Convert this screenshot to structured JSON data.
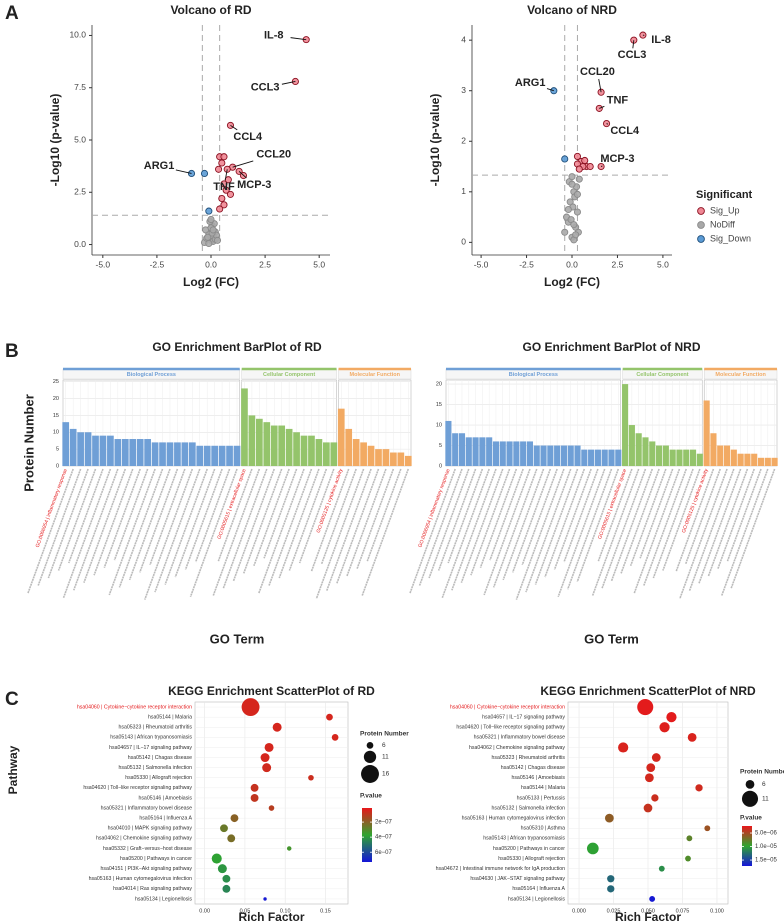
{
  "chart_data": [
    {
      "type": "scatter",
      "panel": "A",
      "title": "Volcano of RD",
      "xlabel": "Log2 (FC)",
      "ylabel": "-Log10 (p-value)",
      "xlim": [
        -5.5,
        5.5
      ],
      "ylim": [
        -0.5,
        10.5
      ],
      "xticks": [
        {
          "value": -5,
          "label": "-5.0"
        },
        -2.5,
        {
          "value": 0,
          "label": "0.0"
        },
        2.5,
        {
          "value": 5,
          "label": "5.0"
        }
      ],
      "yticks": [
        {
          "value": 0,
          "label": "0.0"
        },
        2.5,
        {
          "value": 5,
          "label": "5.0"
        },
        7.5,
        {
          "value": 10,
          "label": "10.0"
        }
      ],
      "hlines": [
        1.4
      ],
      "vlines": [
        -0.4,
        0.4
      ],
      "series": [
        {
          "color": "#ef8794",
          "edgecolor": "#8b1020",
          "x": [
            4.4,
            3.9,
            0.9,
            1.0,
            0.75,
            1.3,
            0.4,
            0.6,
            0.5,
            0.35,
            0.8,
            0.6,
            0.7,
            0.9,
            0.5,
            0.6,
            0.4,
            1.5
          ],
          "values": [
            9.8,
            7.8,
            5.7,
            3.7,
            3.6,
            3.5,
            4.2,
            4.2,
            3.9,
            3.6,
            3.1,
            2.9,
            2.6,
            2.4,
            2.2,
            1.9,
            1.7,
            3.3
          ]
        },
        {
          "color": "#a8a8a8",
          "edgecolor": "#8a8a8a",
          "x": [
            -0.3,
            -0.2,
            -0.1,
            0,
            0.1,
            0.2,
            -0.25,
            0.05,
            0.15,
            -0.05,
            0.1,
            0.2,
            0,
            -0.15,
            0.25,
            0.05,
            -0.1,
            0.3,
            0.1,
            0
          ],
          "values": [
            0.1,
            0.3,
            0.5,
            0.2,
            0.4,
            0.6,
            0.7,
            0.9,
            1.0,
            1.1,
            0.15,
            0.25,
            0.8,
            0.35,
            0.45,
            0.55,
            0.05,
            0.2,
            0.7,
            1.2
          ]
        },
        {
          "color": "#5b9bd5",
          "edgecolor": "#1f4e79",
          "x": [
            -0.9,
            -0.3,
            -0.1
          ],
          "values": [
            3.4,
            3.4,
            1.6
          ]
        }
      ],
      "annotations": [
        {
          "text": "IL-8",
          "xy": [
            4.4,
            9.8
          ],
          "xytext": [
            2.9,
            10.0
          ]
        },
        {
          "text": "CCL3",
          "xy": [
            3.9,
            7.8
          ],
          "xytext": [
            2.5,
            7.5
          ]
        },
        {
          "text": "CCL4",
          "xy": [
            0.9,
            5.7
          ],
          "xytext": [
            1.7,
            5.15
          ]
        },
        {
          "text": "CCL20",
          "xy": [
            1.0,
            3.7
          ],
          "xytext": [
            2.9,
            4.3
          ]
        },
        {
          "text": "TNF",
          "xy": [
            0.75,
            3.6
          ],
          "xytext": [
            0.6,
            2.75
          ]
        },
        {
          "text": "MCP-3",
          "xy": [
            1.3,
            3.5
          ],
          "xytext": [
            2.0,
            2.85
          ]
        },
        {
          "text": "ARG1",
          "xy": [
            -0.9,
            3.4
          ],
          "xytext": [
            -2.4,
            3.75
          ]
        }
      ]
    },
    {
      "type": "scatter",
      "title": "Volcano of NRD",
      "xlabel": "Log2 (FC)",
      "ylabel": "-Log10 (p-value)",
      "xlim": [
        -5.5,
        5.5
      ],
      "ylim": [
        -0.25,
        4.3
      ],
      "xticks": [
        {
          "value": -5,
          "label": "-5.0"
        },
        -2.5,
        {
          "value": 0,
          "label": "0.0"
        },
        2.5,
        {
          "value": 5,
          "label": "5.0"
        }
      ],
      "yticks": [
        0,
        1,
        2,
        3,
        4
      ],
      "hlines": [
        1.33
      ],
      "vlines": [
        -0.4,
        0.3
      ],
      "legend": "right",
      "legend_title": "Significant",
      "series": [
        {
          "name": "Sig_Up",
          "color": "#ef8794",
          "edgecolor": "#8b1020",
          "x": [
            3.9,
            3.4,
            1.6,
            1.5,
            1.9,
            1.6,
            0.3,
            0.5,
            0.7,
            0.8,
            1.0,
            0.6,
            0.3,
            0.4
          ],
          "values": [
            4.1,
            4.0,
            2.97,
            2.65,
            2.35,
            1.5,
            1.7,
            1.6,
            1.62,
            1.5,
            1.5,
            1.5,
            1.55,
            1.45
          ]
        },
        {
          "name": "NoDiff",
          "color": "#a8a8a8",
          "edgecolor": "#8a8a8a",
          "x": [
            -0.4,
            -0.2,
            0,
            0.2,
            0.3,
            -0.1,
            0.1,
            0.25,
            -0.3,
            0.05,
            0.15,
            -0.15,
            0.35,
            0,
            0.1,
            -0.05,
            0.2,
            0.3,
            -0.2,
            0.1,
            0.4,
            0
          ],
          "values": [
            0.2,
            0.4,
            0.1,
            0.3,
            0.6,
            0.8,
            1.0,
            1.1,
            0.5,
            0.7,
            0.9,
            1.2,
            0.2,
            1.3,
            0.05,
            0.45,
            0.15,
            0.95,
            0.65,
            0.35,
            1.25,
            1.15
          ]
        },
        {
          "name": "Sig_Down",
          "color": "#5b9bd5",
          "edgecolor": "#1f4e79",
          "x": [
            -1.0,
            -0.4
          ],
          "values": [
            3.0,
            1.65
          ]
        }
      ],
      "annotations": [
        {
          "text": "IL-8",
          "xy": [
            3.9,
            4.1
          ],
          "xytext": [
            4.9,
            4.0
          ]
        },
        {
          "text": "CCL3",
          "xy": [
            3.4,
            4.0
          ],
          "xytext": [
            3.3,
            3.7
          ]
        },
        {
          "text": "CCL20",
          "xy": [
            1.6,
            2.97
          ],
          "xytext": [
            1.4,
            3.37
          ]
        },
        {
          "text": "TNF",
          "xy": [
            1.5,
            2.65
          ],
          "xytext": [
            2.5,
            2.8
          ]
        },
        {
          "text": "CCL4",
          "xy": [
            1.9,
            2.35
          ],
          "xytext": [
            2.9,
            2.2
          ]
        },
        {
          "text": "MCP-3",
          "xy": [
            1.6,
            1.5
          ],
          "xytext": [
            2.5,
            1.65
          ]
        },
        {
          "text": "ARG1",
          "xy": [
            -1.0,
            3.0
          ],
          "xytext": [
            -2.3,
            3.15
          ]
        }
      ]
    },
    {
      "type": "bar",
      "panel": "B",
      "title": "GO Enrichment BarPlot of RD",
      "ylabel": "Protein Number",
      "xlabel": "GO Term",
      "ylim": [
        0,
        25.5
      ],
      "yticks": [
        0,
        5,
        10,
        15,
        20,
        25
      ],
      "grid": true,
      "highlight_color": "#e41a1c",
      "groups": [
        {
          "name": "Biological Process",
          "color": "#6f9fd6",
          "categories": [
            "GO:0006954 | inflammatory response",
            null,
            null,
            null,
            null,
            null,
            null,
            null,
            null,
            null,
            null,
            null,
            null,
            null,
            null,
            null,
            null,
            null,
            null,
            null,
            null,
            null,
            null,
            null
          ],
          "values": [
            13,
            11,
            10,
            10,
            9,
            9,
            9,
            8,
            8,
            8,
            8,
            8,
            7,
            7,
            7,
            7,
            7,
            7,
            6,
            6,
            6,
            6,
            6,
            6
          ]
        },
        {
          "name": "Cellular Component",
          "color": "#94c46b",
          "categories": [
            "GO:0005615 | extracellular space",
            null,
            null,
            null,
            null,
            null,
            null,
            null,
            null,
            null,
            null,
            null,
            null
          ],
          "values": [
            23,
            15,
            14,
            13,
            12,
            12,
            11,
            10,
            9,
            9,
            8,
            7,
            7
          ]
        },
        {
          "name": "Molecular Function",
          "color": "#f2aa63",
          "categories": [
            "GO:0005125 | cytokine activity",
            null,
            null,
            null,
            null,
            null,
            null,
            null,
            null,
            null
          ],
          "values": [
            17,
            11,
            8,
            7,
            6,
            5,
            5,
            4,
            4,
            3
          ]
        }
      ]
    },
    {
      "type": "bar",
      "title": "GO Enrichment BarPlot of NRD",
      "xlabel": "GO Term",
      "ylim": [
        0,
        21
      ],
      "yticks": [
        0,
        5,
        10,
        15,
        20
      ],
      "grid": true,
      "highlight_color": "#e41a1c",
      "groups": [
        {
          "name": "Biological Process",
          "color": "#6f9fd6",
          "categories": [
            "GO:0006954 | inflammatory response",
            null,
            null,
            null,
            null,
            null,
            null,
            null,
            null,
            null,
            null,
            null,
            null,
            null,
            null,
            null,
            null,
            null,
            null,
            null,
            null,
            null,
            null,
            null,
            null,
            null
          ],
          "values": [
            11,
            8,
            8,
            7,
            7,
            7,
            7,
            6,
            6,
            6,
            6,
            6,
            6,
            5,
            5,
            5,
            5,
            5,
            5,
            5,
            4,
            4,
            4,
            4,
            4,
            4
          ]
        },
        {
          "name": "Cellular Component",
          "color": "#94c46b",
          "categories": [
            "GO:0005615 | extracellular space",
            null,
            null,
            null,
            null,
            null,
            null,
            null,
            null,
            null,
            null,
            null
          ],
          "values": [
            20,
            10,
            8,
            7,
            6,
            5,
            5,
            4,
            4,
            4,
            4,
            3
          ]
        },
        {
          "name": "Molecular Function",
          "color": "#f2aa63",
          "categories": [
            "GO:0005125 | cytokine activity",
            null,
            null,
            null,
            null,
            null,
            null,
            null,
            null,
            null,
            null
          ],
          "values": [
            16,
            8,
            5,
            5,
            4,
            3,
            3,
            3,
            2,
            2,
            2
          ]
        }
      ]
    },
    {
      "type": "bubble",
      "panel": "C",
      "title": "KEGG Enrichment ScatterPlot of RD",
      "ylabel": "Pathway",
      "xlabel": "Rich Factor",
      "xlim": [
        -0.012,
        0.178
      ],
      "xticks": [
        {
          "value": 0,
          "label": "0.00"
        },
        0.05,
        {
          "value": 0.1,
          "label": "0.10"
        },
        0.15
      ],
      "highlight": [
        0
      ],
      "highlight_color": "#e41a1c",
      "categories": [
        "hsa04060 | Cytokine−cytokine receptor interaction",
        "hsa05144 | Malaria",
        "hsa05323 | Rheumatoid arthritis",
        "hsa05143 | African trypanosomiasis",
        "hsa04657 | IL−17 signaling pathway",
        "hsa05142 | Chagas disease",
        "hsa05132 | Salmonella infection",
        "hsa05330 | Allograft rejection",
        "hsa04620 | Toll−like receptor signaling pathway",
        "hsa05146 | Amoebiasis",
        "hsa05321 | Inflammatory bowel disease",
        "hsa05164 | Influenza A",
        "hsa04010 | MAPK signaling pathway",
        "hsa04062 | Chemokine signaling pathway",
        "hsa05332 | Graft−versus−host disease",
        "hsa05200 | Pathways in cancer",
        "hsa04151 | PI3K−Akt signaling pathway",
        "hsa05163 | Human cytomegalovirus infection",
        "hsa04014 | Ras signaling pathway",
        "hsa05134 | Legionellosis"
      ],
      "values": [
        0.057,
        0.155,
        0.09,
        0.162,
        0.08,
        0.075,
        0.077,
        0.132,
        0.062,
        0.062,
        0.083,
        0.037,
        0.024,
        0.033,
        0.105,
        0.015,
        0.022,
        0.027,
        0.027,
        0.075
      ],
      "sizes": [
        16,
        6,
        8,
        6,
        8,
        8,
        8,
        5,
        7,
        7,
        5,
        7,
        7,
        7,
        4,
        9,
        8,
        7,
        7,
        3
      ],
      "pvalues": [
        5e-08,
        5e-08,
        5e-08,
        5e-08,
        5e-08,
        5e-08,
        6e-08,
        7e-08,
        8e-08,
        9e-08,
        1.1e-07,
        2e-07,
        2.6e-07,
        2.3e-07,
        3.3e-07,
        3.8e-07,
        4.1e-07,
        4.3e-07,
        4.5e-07,
        7.2e-07
      ],
      "size_legend": {
        "title": "Protein Number",
        "values": [
          6,
          11,
          16
        ]
      },
      "color_legend": {
        "title": "P.value",
        "lim": [
          1.3e-08,
          7.3e-07
        ],
        "colors": [
          "#e8171b",
          "#2fa52f",
          "#1515d8"
        ],
        "ticks": [
          {
            "value": 2e-07,
            "label": "2e−07"
          },
          {
            "value": 4e-07,
            "label": "4e−07"
          },
          {
            "value": 6e-07,
            "label": "6e−07"
          }
        ]
      }
    },
    {
      "type": "bubble",
      "title": "KEGG Enrichment ScatterPlot of NRD",
      "xlabel": "Rich Factor",
      "xlim": [
        -0.008,
        0.108
      ],
      "xticks": [
        {
          "value": 0,
          "label": "0.000"
        },
        0.025,
        {
          "value": 0.05,
          "label": "0.050"
        },
        0.075,
        {
          "value": 0.1,
          "label": "0.100"
        }
      ],
      "highlight": [
        0
      ],
      "highlight_color": "#e41a1c",
      "categories": [
        "hsa04060 | Cytokine−cytokine receptor interaction",
        "hsa04657 | IL−17 signaling pathway",
        "hsa04620 | Toll−like receptor signaling pathway",
        "hsa05321 | Inflammatory bowel disease",
        "hsa04062 | Chemokine signaling pathway",
        "hsa05323 | Rheumatoid arthritis",
        "hsa05142 | Chagas disease",
        "hsa05146 | Amoebiasis",
        "hsa05144 | Malaria",
        "hsa05133 | Pertussis",
        "hsa05132 | Salmonella infection",
        "hsa05163 | Human cytomegalovirus infection",
        "hsa05310 | Asthma",
        "hsa05143 | African trypanosomiasis",
        "hsa05200 | Pathways in cancer",
        "hsa05330 | Allograft rejection",
        "hsa04672 | Intestinal immune network for IgA production",
        "hsa04630 | JAK−STAT signaling pathway",
        "hsa05164 | Influenza A",
        "hsa05134 | Legionellosis"
      ],
      "values": [
        0.048,
        0.067,
        0.062,
        0.082,
        0.032,
        0.056,
        0.052,
        0.051,
        0.087,
        0.055,
        0.05,
        0.022,
        0.093,
        0.08,
        0.01,
        0.079,
        0.06,
        0.023,
        0.023,
        0.053
      ],
      "sizes": [
        11,
        7,
        7,
        6,
        7,
        6,
        6,
        6,
        5,
        5,
        6,
        6,
        4,
        4,
        8,
        4,
        4,
        5,
        5,
        4
      ],
      "pvalues": [
        2.6e-06,
        2.6e-06,
        2.8e-06,
        3e-06,
        3e-06,
        3.2e-06,
        3.2e-06,
        3.3e-06,
        3.4e-06,
        3.6e-06,
        3.8e-06,
        6e-06,
        5.5e-06,
        8e-06,
        1e-05,
        8.5e-06,
        1.1e-05,
        1.3e-05,
        1.3e-05,
        1.7e-05
      ],
      "size_legend": {
        "title": "Protein Number",
        "values": [
          6,
          11
        ]
      },
      "color_legend": {
        "title": "P.value",
        "lim": [
          2.4e-06,
          1.72e-05
        ],
        "colors": [
          "#e8171b",
          "#2fa52f",
          "#1515d8"
        ],
        "ticks": [
          {
            "value": 5e-06,
            "label": "5.0e−06"
          },
          {
            "value": 1e-05,
            "label": "1.0e−05"
          },
          {
            "value": 1.5e-05,
            "label": "1.5e−05"
          }
        ]
      }
    }
  ]
}
